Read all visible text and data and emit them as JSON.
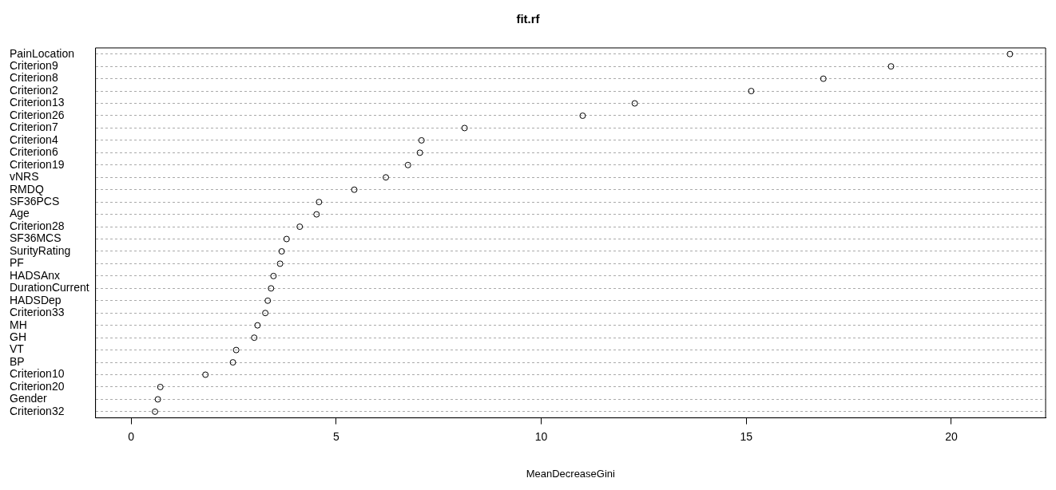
{
  "chart_data": {
    "type": "scatter",
    "orientation": "horizontal",
    "title": "fit.rf",
    "xlabel": "MeanDecreaseGini",
    "categories": [
      "PainLocation",
      "Criterion9",
      "Criterion8",
      "Criterion2",
      "Criterion13",
      "Criterion26",
      "Criterion7",
      "Criterion4",
      "Criterion6",
      "Criterion19",
      "vNRS",
      "RMDQ",
      "SF36PCS",
      "Age",
      "Criterion28",
      "SF36MCS",
      "SurityRating",
      "PF",
      "HADSAnx",
      "DurationCurrent",
      "HADSDep",
      "Criterion33",
      "MH",
      "GH",
      "VT",
      "BP",
      "Criterion10",
      "Criterion20",
      "Gender",
      "Criterion32"
    ],
    "values": [
      21.43,
      18.53,
      16.88,
      15.12,
      12.28,
      11.01,
      8.13,
      7.08,
      7.04,
      6.75,
      6.21,
      5.44,
      4.58,
      4.52,
      4.11,
      3.79,
      3.67,
      3.63,
      3.47,
      3.41,
      3.33,
      3.27,
      3.08,
      3.0,
      2.56,
      2.48,
      1.81,
      0.71,
      0.65,
      0.58
    ],
    "color": "#000000",
    "marker": "circle",
    "grid": "y",
    "legend": false,
    "xlim": [
      -0.87,
      22.3
    ],
    "xticks": [
      0,
      5,
      10,
      15,
      20
    ]
  }
}
